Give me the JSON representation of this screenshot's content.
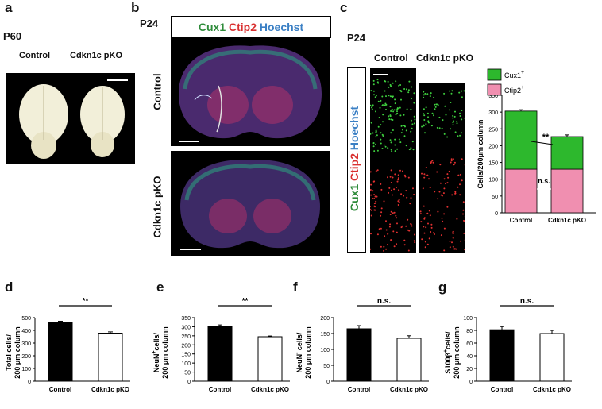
{
  "panel_a": {
    "letter": "a",
    "age": "P60",
    "labels": [
      "Control",
      "Cdkn1c pKO"
    ]
  },
  "panel_b": {
    "letter": "b",
    "age": "P24",
    "legend": [
      {
        "text": "Cux1",
        "color": "#2e8b3a"
      },
      {
        "text": "Ctip2",
        "color": "#d93030"
      },
      {
        "text": "Hoechst",
        "color": "#3a7fc4"
      }
    ],
    "row_labels": [
      "Control",
      "Cdkn1c pKO"
    ]
  },
  "panel_c": {
    "letter": "c",
    "age": "P24",
    "column_labels": [
      "Control",
      "Cdkn1c pKO"
    ],
    "side_legend": [
      {
        "text": "Cux1",
        "color": "#2e8b3a"
      },
      {
        "text": "Ctip2",
        "color": "#d93030"
      },
      {
        "text": "Hoechst",
        "color": "#3a7fc4"
      }
    ]
  },
  "chart_data": [
    {
      "id": "c",
      "type": "bar",
      "stacked": true,
      "categories": [
        "Control",
        "Cdkn1c pKO"
      ],
      "series": [
        {
          "name": "Ctip2+",
          "color": "#f08fb0",
          "values": [
            130,
            130
          ],
          "errors": [
            14,
            12
          ]
        },
        {
          "name": "Cux1+",
          "color": "#2db82d",
          "values": [
            173,
            97
          ],
          "errors": [
            4,
            5
          ]
        }
      ],
      "ylabel": "Cells/200μm column",
      "ylim": [
        0,
        350
      ],
      "yticks": [
        0,
        50,
        100,
        150,
        200,
        250,
        300,
        350
      ],
      "annotations": [
        "**",
        "n.s."
      ],
      "legend_position": "top"
    },
    {
      "id": "d",
      "type": "bar",
      "categories": [
        "Control",
        "Cdkn1c pKO"
      ],
      "values": [
        460,
        378
      ],
      "errors": [
        12,
        10
      ],
      "fills": [
        "#000000",
        "#ffffff"
      ],
      "ylabel": "Total cells/ 200 μm column",
      "ylim": [
        0,
        500
      ],
      "yticks": [
        0,
        100,
        200,
        300,
        400,
        500
      ],
      "significance": "**"
    },
    {
      "id": "e",
      "type": "bar",
      "categories": [
        "Control",
        "Cdkn1c pKO"
      ],
      "values": [
        300,
        245
      ],
      "errors": [
        10,
        4
      ],
      "fills": [
        "#000000",
        "#ffffff"
      ],
      "ylabel": "NeuN+cells/ 200 μm column",
      "ylim": [
        0,
        350
      ],
      "yticks": [
        0,
        50,
        100,
        150,
        200,
        250,
        300,
        350
      ],
      "significance": "**"
    },
    {
      "id": "f",
      "type": "bar",
      "categories": [
        "Control",
        "Cdkn1c pKO"
      ],
      "values": [
        165,
        135
      ],
      "errors": [
        10,
        8
      ],
      "fills": [
        "#000000",
        "#ffffff"
      ],
      "ylabel": "NeuN- cells/ 200 μm column",
      "ylim": [
        0,
        200
      ],
      "yticks": [
        0,
        50,
        100,
        150,
        200
      ],
      "significance": "n.s."
    },
    {
      "id": "g",
      "type": "bar",
      "categories": [
        "Control",
        "Cdkn1c pKO"
      ],
      "values": [
        81,
        75
      ],
      "errors": [
        5,
        5
      ],
      "fills": [
        "#000000",
        "#ffffff"
      ],
      "ylabel": "S100β+cells/ 200 μm column",
      "ylim": [
        0,
        100
      ],
      "yticks": [
        0,
        20,
        40,
        60,
        80,
        100
      ],
      "significance": "n.s."
    }
  ],
  "bottom_letters": [
    "d",
    "e",
    "f",
    "g"
  ]
}
